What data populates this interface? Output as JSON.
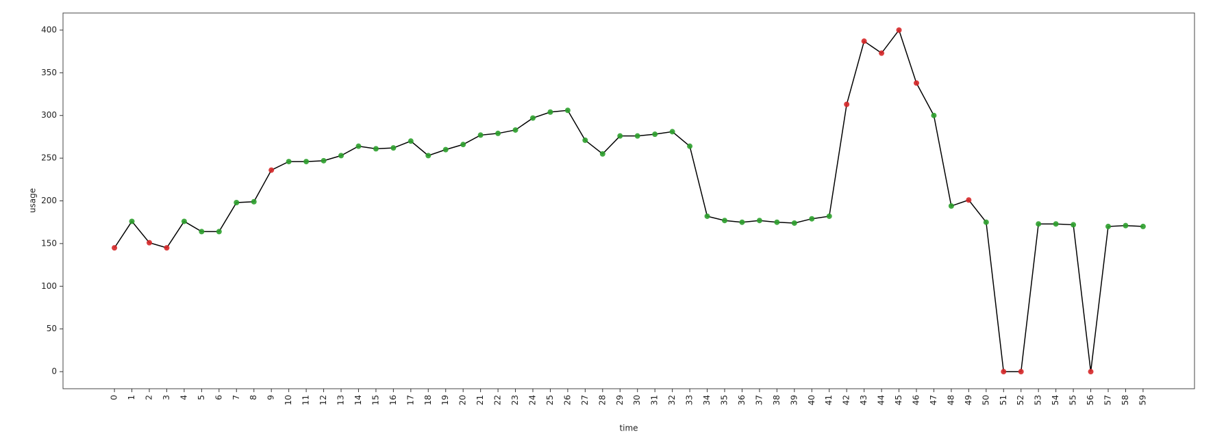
{
  "chart_data": {
    "type": "line",
    "xlabel": "time",
    "ylabel": "usage",
    "x": [
      0,
      1,
      2,
      3,
      4,
      5,
      6,
      7,
      8,
      9,
      10,
      11,
      12,
      13,
      14,
      15,
      16,
      17,
      18,
      19,
      20,
      21,
      22,
      23,
      24,
      25,
      26,
      27,
      28,
      29,
      30,
      31,
      32,
      33,
      34,
      35,
      36,
      37,
      38,
      39,
      40,
      41,
      42,
      43,
      44,
      45,
      46,
      47,
      48,
      49,
      50,
      51,
      52,
      53,
      54,
      55,
      56,
      57,
      58,
      59
    ],
    "values": [
      145,
      176,
      151,
      145,
      176,
      164,
      164,
      198,
      199,
      236,
      246,
      246,
      247,
      253,
      264,
      261,
      262,
      270,
      253,
      260,
      266,
      277,
      279,
      283,
      297,
      304,
      306,
      271,
      255,
      276,
      276,
      278,
      281,
      264,
      182,
      177,
      175,
      177,
      175,
      174,
      179,
      182,
      313,
      387,
      373,
      400,
      338,
      300,
      194,
      201,
      175,
      0,
      0,
      173,
      173,
      172,
      0,
      170,
      171,
      170
    ],
    "color": "#000000",
    "marker_colors": [
      "#d62728",
      "#2ca02c",
      "#d62728",
      "#d62728",
      "#2ca02c",
      "#2ca02c",
      "#2ca02c",
      "#2ca02c",
      "#2ca02c",
      "#d62728",
      "#2ca02c",
      "#2ca02c",
      "#2ca02c",
      "#2ca02c",
      "#2ca02c",
      "#2ca02c",
      "#2ca02c",
      "#2ca02c",
      "#2ca02c",
      "#2ca02c",
      "#2ca02c",
      "#2ca02c",
      "#2ca02c",
      "#2ca02c",
      "#2ca02c",
      "#2ca02c",
      "#2ca02c",
      "#2ca02c",
      "#2ca02c",
      "#2ca02c",
      "#2ca02c",
      "#2ca02c",
      "#2ca02c",
      "#2ca02c",
      "#2ca02c",
      "#2ca02c",
      "#2ca02c",
      "#2ca02c",
      "#2ca02c",
      "#2ca02c",
      "#2ca02c",
      "#2ca02c",
      "#d62728",
      "#d62728",
      "#d62728",
      "#d62728",
      "#d62728",
      "#2ca02c",
      "#2ca02c",
      "#d62728",
      "#2ca02c",
      "#d62728",
      "#d62728",
      "#2ca02c",
      "#2ca02c",
      "#2ca02c",
      "#d62728",
      "#2ca02c",
      "#2ca02c",
      "#2ca02c"
    ],
    "xlim": [
      -2.95,
      61.95
    ],
    "xticks": [
      0,
      1,
      2,
      3,
      4,
      5,
      6,
      7,
      8,
      9,
      10,
      11,
      12,
      13,
      14,
      15,
      16,
      17,
      18,
      19,
      20,
      21,
      22,
      23,
      24,
      25,
      26,
      27,
      28,
      29,
      30,
      31,
      32,
      33,
      34,
      35,
      36,
      37,
      38,
      39,
      40,
      41,
      42,
      43,
      44,
      45,
      46,
      47,
      48,
      49,
      50,
      51,
      52,
      53,
      54,
      55,
      56,
      57,
      58,
      59
    ],
    "ylim": [
      -20,
      420
    ],
    "yticks": [
      0,
      50,
      100,
      150,
      200,
      250,
      300,
      350,
      400
    ],
    "grid": false
  }
}
